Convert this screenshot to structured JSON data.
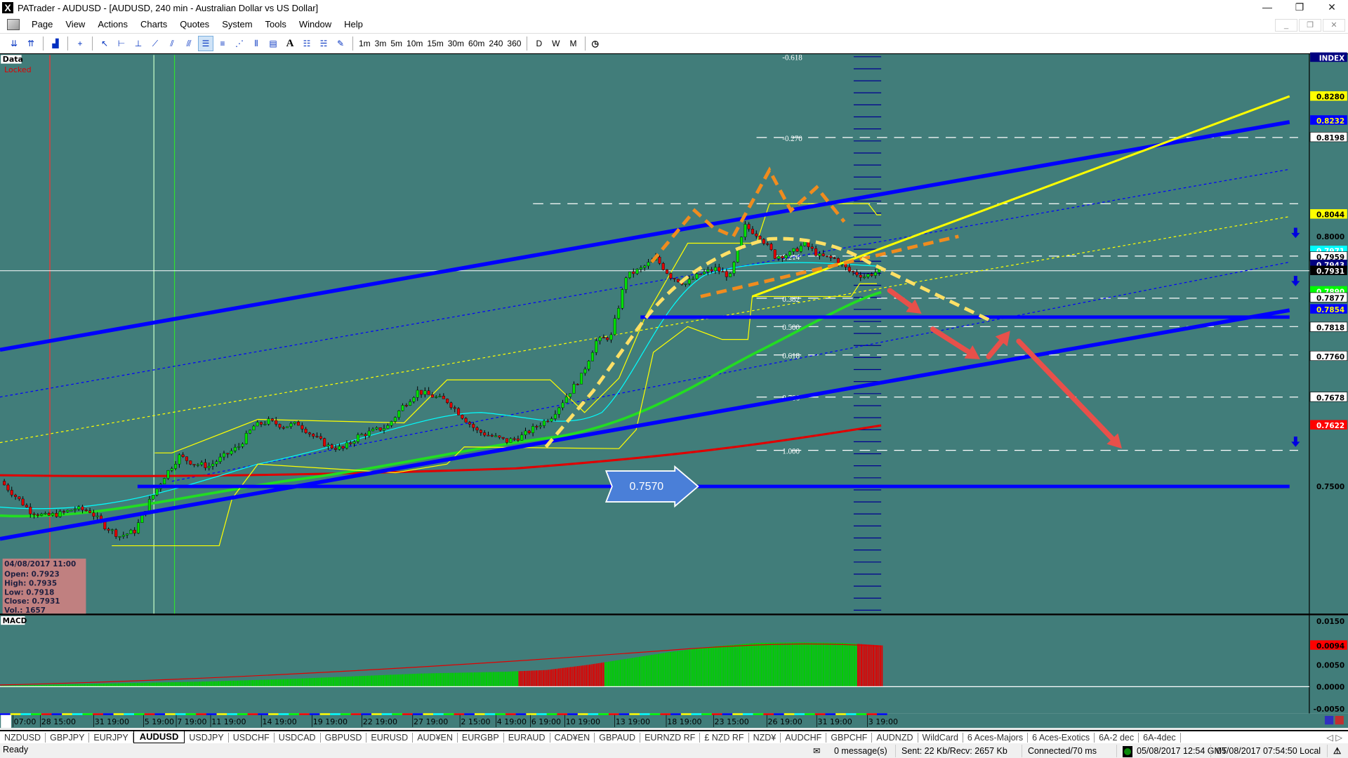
{
  "window": {
    "title": "PATrader - AUDUSD - [AUDUSD, 240 min - Australian Dollar vs US Dollar]",
    "logo": "X"
  },
  "menu": [
    "Page",
    "View",
    "Actions",
    "Charts",
    "Quotes",
    "System",
    "Tools",
    "Window",
    "Help"
  ],
  "toolbar": {
    "tools": [
      "zoom-out-icon",
      "zoom-in-icon",
      "indicator-icon",
      "crosshair-icon",
      "pointer-icon",
      "horizontal-line-icon",
      "vertical-line-icon",
      "trendline-icon",
      "channel-icon",
      "regression-channel-icon",
      "fibonacci-retracement-icon",
      "fibonacci-extension-icon",
      "gann-fan-icon",
      "cycle-lines-icon",
      "histogram-icon",
      "text-icon",
      "pat-icon",
      "rsi-icon",
      "draw-pen-icon"
    ],
    "timeframes": [
      "1m",
      "3m",
      "5m",
      "10m",
      "15m",
      "30m",
      "60m",
      "240",
      "360"
    ],
    "periods": [
      "D",
      "W",
      "M"
    ],
    "clock": "clock-icon"
  },
  "chart": {
    "pane_label": "Data",
    "locked_label": "Locked",
    "info": {
      "date": "04/08/2017 11:00",
      "open": "Open: 0.7923",
      "high": "High: 0.7935",
      "low": "Low: 0.7918",
      "close": "Close: 0.7931",
      "vol": "Vol.: 1657"
    },
    "fib_levels": [
      "-0.618",
      "-0.270",
      "0.214",
      "0.382",
      "0.500",
      "0.618",
      "0.786",
      "1.000"
    ],
    "price_callout": "0.7570",
    "price_axis": [
      {
        "v": "INDEX",
        "bg": "#000080",
        "fg": "#ffffff"
      },
      {
        "v": "0.8280",
        "bg": "#ffff00",
        "fg": "#000000"
      },
      {
        "v": "0.8232",
        "bg": "#0000ff",
        "fg": "#ffff00"
      },
      {
        "v": "0.8198",
        "bg": "#ffffff",
        "fg": "#000000"
      },
      {
        "v": "0.8044",
        "bg": "#ffff00",
        "fg": "#000000"
      },
      {
        "v": "0.8000",
        "bg": "",
        "fg": "#000000"
      },
      {
        "v": "0.7971",
        "bg": "#00ffff",
        "fg": "#ffffff"
      },
      {
        "v": "0.7959",
        "bg": "#ffffff",
        "fg": "#000000"
      },
      {
        "v": "0.7943",
        "bg": "#000080",
        "fg": "#ffffff"
      },
      {
        "v": "0.7931",
        "bg": "#000000",
        "fg": "#ffffff"
      },
      {
        "v": "0.7890",
        "bg": "#00ff00",
        "fg": "#ffffff"
      },
      {
        "v": "0.7877",
        "bg": "#ffffff",
        "fg": "#000000"
      },
      {
        "v": "0.7854",
        "bg": "#0000ff",
        "fg": "#ffff00"
      },
      {
        "v": "0.7818",
        "bg": "#ffffff",
        "fg": "#000000"
      },
      {
        "v": "0.7760",
        "bg": "#ffffff",
        "fg": "#000000"
      },
      {
        "v": "0.7678",
        "bg": "#ffffff",
        "fg": "#000000"
      },
      {
        "v": "0.7622",
        "bg": "#ff0000",
        "fg": "#ffffff"
      },
      {
        "v": "0.7500",
        "bg": "",
        "fg": "#000000"
      }
    ],
    "macd_label": "MACD",
    "macd_axis": [
      {
        "v": "0.0150",
        "bg": "",
        "fg": "#000000"
      },
      {
        "v": "0.0094",
        "bg": "#ff0000",
        "fg": "#000000"
      },
      {
        "v": "0.0050",
        "bg": "",
        "fg": "#000000"
      },
      {
        "v": "0.0000",
        "bg": "",
        "fg": "#000000"
      },
      {
        "v": "-0.0050",
        "bg": "",
        "fg": "#000000"
      }
    ],
    "time_labels": [
      "07:00",
      "28 15:00",
      "31 19:00",
      "5 19:00",
      "7 19:00",
      "11 19:00",
      "14 19:00",
      "19 19:00",
      "22 19:00",
      "27 19:00",
      "2 15:00",
      "4 19:00",
      "6 19:00",
      "10 19:00",
      "13 19:00",
      "18 19:00",
      "23 15:00",
      "26 19:00",
      "31 19:00",
      "3 19:00"
    ],
    "colors": {
      "background": "#417d7a",
      "up": "#00e000",
      "down": "#e00000",
      "channel": "#0000ff",
      "ma_slow": "#e00000",
      "ma_fast": "#22dd22",
      "pattern": "#f08c1e",
      "curve": "#ffe066",
      "arrows": "#e8504a"
    }
  },
  "chart_data": {
    "type": "candlestick",
    "symbol": "AUDUSD",
    "timeframe": "240 min",
    "close_path": [
      0.751,
      0.748,
      0.745,
      0.744,
      0.7445,
      0.7455,
      0.745,
      0.742,
      0.74,
      0.741,
      0.747,
      0.752,
      0.756,
      0.7545,
      0.754,
      0.756,
      0.758,
      0.762,
      0.763,
      0.762,
      0.7625,
      0.76,
      0.758,
      0.7575,
      0.76,
      0.761,
      0.762,
      0.766,
      0.769,
      0.768,
      0.767,
      0.764,
      0.761,
      0.76,
      0.759,
      0.76,
      0.762,
      0.764,
      0.768,
      0.772,
      0.779,
      0.78,
      0.792,
      0.7935,
      0.7955,
      0.792,
      0.7905,
      0.7925,
      0.7935,
      0.792,
      0.802,
      0.8,
      0.796,
      0.7965,
      0.7985,
      0.796,
      0.7955,
      0.793,
      0.792,
      0.7931
    ],
    "macd_histogram_path": [
      0.0002,
      0.0004,
      0.0006,
      0.0008,
      0.001,
      0.0012,
      0.0015,
      0.0018,
      0.0022,
      0.0026,
      0.003,
      0.0032,
      0.0034,
      0.0038,
      0.005,
      0.0065,
      0.008,
      0.0092,
      0.01,
      0.0101,
      0.01,
      0.0094
    ],
    "last_close": 0.7931,
    "ylim": [
      0.738,
      0.835
    ]
  },
  "symbol_tabs": [
    "NZDUSD",
    "GBPJPY",
    "EURJPY",
    "AUDUSD",
    "USDJPY",
    "USDCHF",
    "USDCAD",
    "GBPUSD",
    "EURUSD",
    "AUD¥EN",
    "EURGBP",
    "EURAUD",
    "CAD¥EN",
    "GBPAUD",
    "EURNZD RF",
    "£ NZD RF",
    "NZD¥",
    "AUDCHF",
    "GBPCHF",
    "AUDNZD",
    "WildCard",
    "6 Aces-Majors",
    "6 Aces-Exotics",
    "6A-2 dec",
    "6A-4dec"
  ],
  "active_tab": "AUDUSD",
  "status": {
    "ready": "Ready",
    "messages": "0 message(s)",
    "traffic": "Sent: 22 Kb/Recv: 2657 Kb",
    "connection": "Connected/70 ms",
    "gmt": "05/08/2017 12:54 GMT",
    "local": "05/08/2017 07:54:50 Local"
  }
}
